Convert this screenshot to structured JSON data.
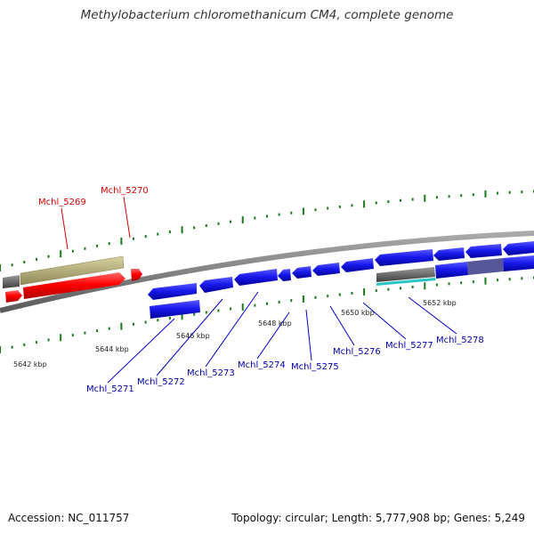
{
  "title": "Methylobacterium chloromethanicum CM4, complete genome",
  "accession": "Accession: NC_011757",
  "topology_info": "Topology: circular; Length: 5,777,908 bp; Genes: 5,249",
  "colors": {
    "forward_gene": "#ff0000",
    "reverse_gene": "#0000ff",
    "forward_label": "#d40000",
    "reverse_label": "#0000aa",
    "backbone": "#888888",
    "tick": "#1a7a1a",
    "repeat_feature": "#b8b07a",
    "gray_feature": "#666666"
  },
  "forward_genes": [
    {
      "name": "Mchl_5269"
    },
    {
      "name": "Mchl_5270"
    }
  ],
  "reverse_genes": [
    {
      "name": "Mchl_5271"
    },
    {
      "name": "Mchl_5272"
    },
    {
      "name": "Mchl_5273"
    },
    {
      "name": "Mchl_5274"
    },
    {
      "name": "Mchl_5275"
    },
    {
      "name": "Mchl_5276"
    },
    {
      "name": "Mchl_5277"
    },
    {
      "name": "Mchl_5278"
    }
  ],
  "scale_ticks": [
    "5642 kbp",
    "5644 kbp",
    "5646 kbp",
    "5648 kbp",
    "5650 kbp",
    "5652 kbp"
  ]
}
